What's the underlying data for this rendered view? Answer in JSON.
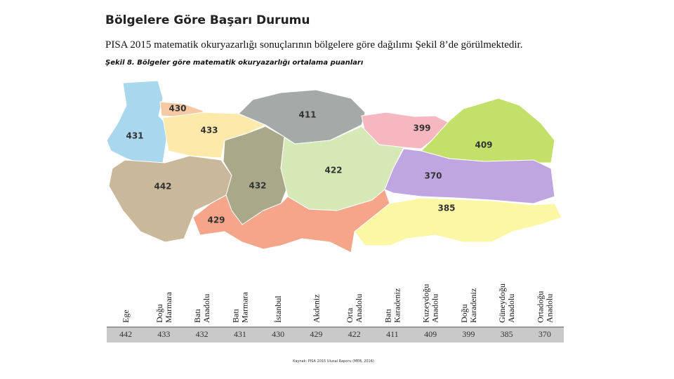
{
  "header": {
    "title": "Bölgelere Göre Başarı Durumu",
    "subtitle": "PISA 2015 matematik okuryazarlığı sonuçlarının bölgelere göre dağılımı Şekil 8’de görülmektedir."
  },
  "figure": {
    "caption": "Şekil 8. Bölgeler göre matematik okuryazarlığı ortalama puanları",
    "labels": [
      430,
      431,
      433,
      411,
      399,
      409,
      442,
      432,
      422,
      370,
      429,
      385
    ]
  },
  "table": {
    "headers": [
      [
        "Ege"
      ],
      [
        "Doğu",
        "Marmara"
      ],
      [
        "Batı",
        "Anadolu"
      ],
      [
        "Batı",
        "Marmara"
      ],
      [
        "İstanbul"
      ],
      [
        "Akdeniz"
      ],
      [
        "Orta",
        "Anadolu"
      ],
      [
        "Batı",
        "Karadeniz"
      ],
      [
        "Kuzeydoğu",
        "Anadolu"
      ],
      [
        "Doğu",
        "Karadeniz"
      ],
      [
        "Güneydoğu",
        "Anadolu"
      ],
      [
        "Ortadoğu",
        "Anadolu"
      ]
    ],
    "values": [
      442,
      433,
      432,
      431,
      430,
      429,
      422,
      411,
      409,
      399,
      385,
      370
    ]
  },
  "footer": {
    "source": "Kaynak: PISA 2015 Ulusal Raporu (MEB, 2016)"
  }
}
